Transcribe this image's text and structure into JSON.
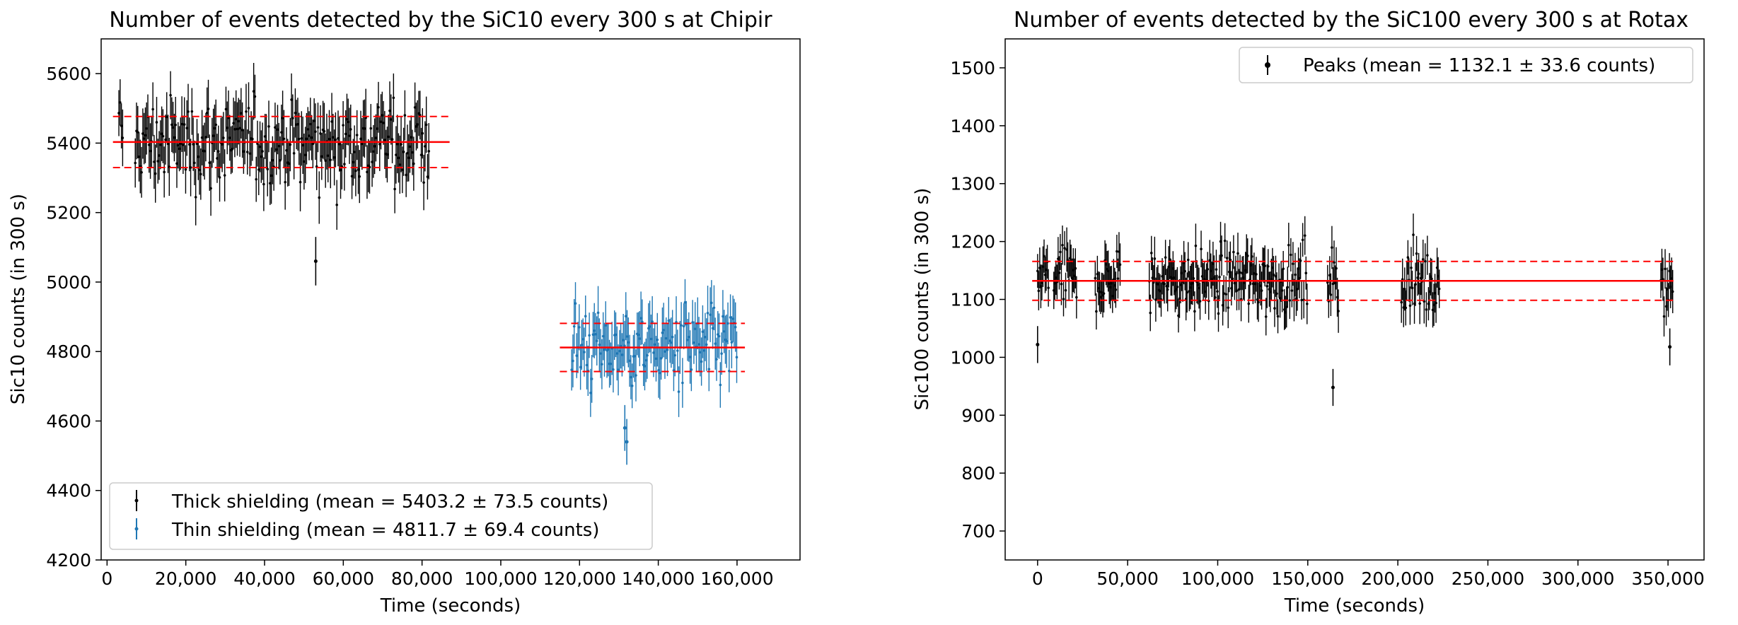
{
  "chart_data": [
    {
      "type": "scatter",
      "title": "Number of events detected by the SiC10 every 300 s at Chipir",
      "xlabel": "Time (seconds)",
      "ylabel": "Sic10 counts (in 300 s)",
      "xlim": [
        -1500,
        176000
      ],
      "ylim": [
        4200,
        5700
      ],
      "xticks": [
        0,
        20000,
        40000,
        60000,
        80000,
        100000,
        120000,
        140000,
        160000
      ],
      "xtick_labels": [
        "0",
        "20,000",
        "40,000",
        "60,000",
        "80,000",
        "100,000",
        "120,000",
        "140,000",
        "160,000"
      ],
      "yticks": [
        4200,
        4400,
        4600,
        4800,
        5000,
        5200,
        5400,
        5600
      ],
      "ytick_labels": [
        "4200",
        "4400",
        "4600",
        "4800",
        "5000",
        "5200",
        "5400",
        "5600"
      ],
      "legend_position": "lower-left",
      "series": [
        {
          "name": "Thick shielding",
          "label": "Thick shielding (mean = 5403.2 ±  73.5 counts)",
          "color": "#000000",
          "x_range": [
            3000,
            82000
          ],
          "mean": 5403.2,
          "std": 73.5,
          "gaps": [
            [
              4000,
              7000
            ]
          ],
          "points_approx": 250,
          "outliers": [
            {
              "x": 53000,
              "y": 5060
            }
          ]
        },
        {
          "name": "Thin shielding",
          "label": "Thin shielding (mean = 4811.7 ±  69.4 counts)",
          "color": "#1f77b4",
          "x_range": [
            118000,
            160000
          ],
          "mean": 4811.7,
          "std": 69.4,
          "gaps": [],
          "points_approx": 140,
          "outliers": [
            {
              "x": 131500,
              "y": 4580
            },
            {
              "x": 132000,
              "y": 4540
            }
          ]
        }
      ],
      "reference_lines": [
        {
          "y": 5403.2,
          "style": "solid",
          "x_range": [
            1500,
            87000
          ],
          "color": "#ff0000"
        },
        {
          "y": 5476.7,
          "style": "dashed",
          "x_range": [
            1500,
            87000
          ],
          "color": "#ff0000"
        },
        {
          "y": 5329.7,
          "style": "dashed",
          "x_range": [
            1500,
            87000
          ],
          "color": "#ff0000"
        },
        {
          "y": 4811.7,
          "style": "solid",
          "x_range": [
            115000,
            162000
          ],
          "color": "#ff0000"
        },
        {
          "y": 4881.1,
          "style": "dashed",
          "x_range": [
            115000,
            162000
          ],
          "color": "#ff0000"
        },
        {
          "y": 4742.3,
          "style": "dashed",
          "x_range": [
            115000,
            162000
          ],
          "color": "#ff0000"
        }
      ]
    },
    {
      "type": "scatter",
      "title": "Number of events detected by the SiC100 every 300 s at Rotax",
      "xlabel": "Time (seconds)",
      "ylabel": "Sic100 counts (in 300 s)",
      "xlim": [
        -18000,
        370000
      ],
      "ylim": [
        650,
        1550
      ],
      "xticks": [
        0,
        50000,
        100000,
        150000,
        200000,
        250000,
        300000,
        350000
      ],
      "xtick_labels": [
        "0",
        "50,000",
        "100,000",
        "150,000",
        "200,000",
        "250,000",
        "300,000",
        "350,000"
      ],
      "yticks": [
        700,
        800,
        900,
        1000,
        1100,
        1200,
        1300,
        1400,
        1500
      ],
      "ytick_labels": [
        "700",
        "800",
        "900",
        "1000",
        "1100",
        "1200",
        "1300",
        "1400",
        "1500"
      ],
      "legend_position": "top-right",
      "series": [
        {
          "name": "Peaks",
          "label": "Peaks (mean = 1132.1 ±  33.6 counts)",
          "color": "#000000",
          "mean": 1132.1,
          "std": 33.6,
          "segments": [
            [
              0,
              6000
            ],
            [
              9000,
              22000
            ],
            [
              32000,
              46000
            ],
            [
              62000,
              150000
            ],
            [
              161000,
              167000
            ],
            [
              202000,
              223000
            ],
            [
              346000,
              353000
            ]
          ],
          "outliers": [
            {
              "x": 0,
              "y": 1022
            },
            {
              "x": 164000,
              "y": 948
            },
            {
              "x": 351000,
              "y": 1018
            }
          ]
        }
      ],
      "reference_lines": [
        {
          "y": 1132.1,
          "style": "solid",
          "x_range": [
            -3000,
            353000
          ],
          "color": "#ff0000"
        },
        {
          "y": 1165.7,
          "style": "dashed",
          "x_range": [
            -3000,
            353000
          ],
          "color": "#ff0000"
        },
        {
          "y": 1098.5,
          "style": "dashed",
          "x_range": [
            -3000,
            353000
          ],
          "color": "#ff0000"
        }
      ]
    }
  ]
}
